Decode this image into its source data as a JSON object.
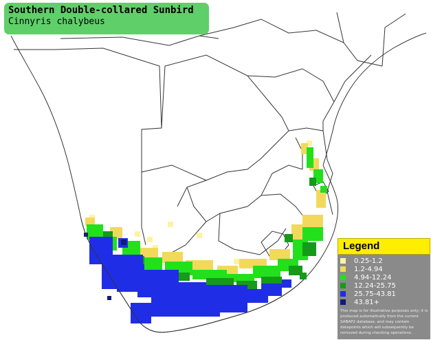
{
  "title": {
    "common_name": "Southern Double-collared Sunbird",
    "scientific_name": "Cinnyris chalybeus"
  },
  "legend": {
    "heading": "Legend",
    "items": [
      {
        "label": "0.25-1.2",
        "color": "#fff3a3"
      },
      {
        "label": "1.2-4.94",
        "color": "#f2d95c"
      },
      {
        "label": "4.94-12.24",
        "color": "#22e01c"
      },
      {
        "label": "12.24-25.75",
        "color": "#159a1a"
      },
      {
        "label": "25.75-43.81",
        "color": "#1f2ee6"
      },
      {
        "label": "43.81+",
        "color": "#131a7a"
      }
    ],
    "note": "This map is for illustrative purposes only; it is produced automatically from the current SABAP2 database, and may contain datapoints which will subsequently be removed during checking operations."
  },
  "colors": {
    "title_bg": "#5fcf6a",
    "legend_head_bg": "#ffee00",
    "legend_bg": "#8a8a8a",
    "border": "#333333"
  }
}
